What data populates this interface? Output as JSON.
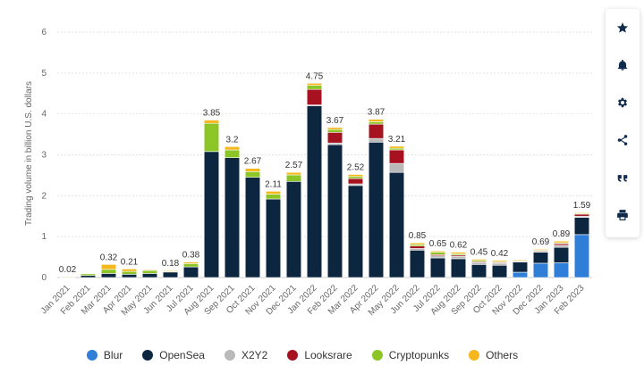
{
  "chart_data": {
    "type": "bar",
    "stacked": true,
    "ylabel": "Trading volume in billion U.S. dollars",
    "xlabel": "",
    "ylim": [
      0,
      6
    ],
    "yticks": [
      0,
      1,
      2,
      3,
      4,
      5,
      6
    ],
    "grid": true,
    "legend_position": "bottom",
    "categories": [
      "Jan 2021",
      "Feb 2021",
      "Mar 2021",
      "Apr 2021",
      "May 2021",
      "Jun 2021",
      "Jul 2021",
      "Aug 2021",
      "Sep 2021",
      "Oct 2021",
      "Nov 2021",
      "Dec 2021",
      "Jan 2022",
      "Feb 2022",
      "Mar 2022",
      "Apr 2022",
      "May 2022",
      "Jun 2022",
      "Jul 2022",
      "Aug 2022",
      "Sep 2022",
      "Oct 2022",
      "Nov 2022",
      "Dec 2022",
      "Jan 2023",
      "Feb 2023"
    ],
    "totals_labels": [
      "0.02",
      "",
      "0.32",
      "0.21",
      "",
      "0.18",
      "0.38",
      "3.85",
      "3.2",
      "2.67",
      "2.11",
      "2.57",
      "4.75",
      "3.67",
      "2.52",
      "3.87",
      "3.21",
      "0.85",
      "0.65",
      "0.62",
      "0.45",
      "0.42",
      "",
      "0.69",
      "0.89",
      "1.59"
    ],
    "series": [
      {
        "name": "Blur",
        "color": "#2f7ed8",
        "values": [
          0,
          0,
          0,
          0,
          0,
          0,
          0,
          0,
          0,
          0,
          0,
          0,
          0,
          0,
          0,
          0,
          0,
          0,
          0,
          0,
          0,
          0,
          0.13,
          0.35,
          0.36,
          1.05
        ]
      },
      {
        "name": "OpenSea",
        "color": "#0d2640",
        "values": [
          0.01,
          0.05,
          0.1,
          0.08,
          0.1,
          0.14,
          0.26,
          3.08,
          2.93,
          2.45,
          1.92,
          2.35,
          4.2,
          3.25,
          2.25,
          3.31,
          2.57,
          0.67,
          0.48,
          0.46,
          0.32,
          0.3,
          0.25,
          0.27,
          0.38,
          0.42
        ]
      },
      {
        "name": "X2Y2",
        "color": "#b9b9b9",
        "values": [
          0,
          0,
          0,
          0,
          0,
          0,
          0,
          0,
          0,
          0,
          0,
          0,
          0.02,
          0.04,
          0.04,
          0.09,
          0.22,
          0.04,
          0.05,
          0.06,
          0.05,
          0.05,
          0.02,
          0.03,
          0.05,
          0.03
        ]
      },
      {
        "name": "Looksrare",
        "color": "#a6121f",
        "values": [
          0,
          0,
          0,
          0,
          0,
          0,
          0,
          0,
          0,
          0,
          0,
          0,
          0.38,
          0.26,
          0.13,
          0.35,
          0.33,
          0.06,
          0.03,
          0.03,
          0.02,
          0.02,
          0.01,
          0.01,
          0.04,
          0.05
        ]
      },
      {
        "name": "Cryptopunks",
        "color": "#8bc526",
        "values": [
          0.01,
          0.04,
          0.1,
          0.07,
          0.07,
          0.01,
          0.08,
          0.69,
          0.19,
          0.14,
          0.12,
          0.16,
          0.1,
          0.07,
          0.05,
          0.06,
          0.04,
          0.04,
          0.06,
          0.03,
          0.03,
          0.02,
          0.01,
          0.02,
          0.02,
          0.02
        ]
      },
      {
        "name": "Others",
        "color": "#f5b71c",
        "values": [
          0,
          0,
          0.12,
          0.06,
          0.02,
          0.02,
          0.04,
          0.08,
          0.08,
          0.08,
          0.07,
          0.06,
          0.05,
          0.05,
          0.05,
          0.06,
          0.05,
          0.04,
          0.03,
          0.04,
          0.03,
          0.03,
          0.02,
          0.02,
          0.04,
          0.02
        ]
      }
    ]
  },
  "sidebar": {
    "items": [
      {
        "name": "favorite-button",
        "icon": "star-icon"
      },
      {
        "name": "notification-button",
        "icon": "bell-icon"
      },
      {
        "name": "settings-button",
        "icon": "gear-icon"
      },
      {
        "name": "share-button",
        "icon": "share-icon"
      },
      {
        "name": "cite-button",
        "icon": "quote-icon"
      },
      {
        "name": "print-button",
        "icon": "printer-icon"
      }
    ]
  },
  "legend": {
    "items": [
      {
        "label": "Blur",
        "color": "#2f7ed8"
      },
      {
        "label": "OpenSea",
        "color": "#0d2640"
      },
      {
        "label": "X2Y2",
        "color": "#b9b9b9"
      },
      {
        "label": "Looksrare",
        "color": "#a6121f"
      },
      {
        "label": "Cryptopunks",
        "color": "#8bc526"
      },
      {
        "label": "Others",
        "color": "#f5b71c"
      }
    ]
  }
}
